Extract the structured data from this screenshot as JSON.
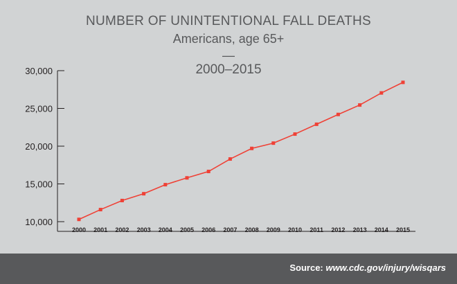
{
  "header": {
    "title": "NUMBER OF UNINTENTIONAL FALL DEATHS",
    "subtitle": "Americans, age 65+",
    "separator": "—",
    "period": "2000–2015"
  },
  "footer": {
    "source_label": "Source: ",
    "source_url": "www.cdc.gov/injury/wisqars"
  },
  "colors": {
    "background": "#d1d3d4",
    "line": "#ef4136",
    "footer_bg": "#58595b",
    "text": "#58595b"
  },
  "chart_data": {
    "type": "line",
    "title": "NUMBER OF UNINTENTIONAL FALL DEATHS",
    "subtitle": "Americans, age 65+",
    "xlabel": "",
    "ylabel": "",
    "ylim": [
      10000,
      30000
    ],
    "yticks": [
      10000,
      15000,
      20000,
      25000,
      30000
    ],
    "ytick_labels": [
      "10,000",
      "15,000",
      "20,000",
      "25,000",
      "30,000"
    ],
    "grid": false,
    "x": [
      "2000",
      "2001",
      "2002",
      "2003",
      "2004",
      "2005",
      "2006",
      "2007",
      "2008",
      "2009",
      "2010",
      "2011",
      "2012",
      "2013",
      "2014",
      "2015"
    ],
    "series": [
      {
        "values": [
          10300,
          11600,
          12800,
          13700,
          14900,
          15800,
          16650,
          18300,
          19700,
          20400,
          21600,
          22900,
          24200,
          25450,
          27050,
          28450
        ]
      }
    ]
  }
}
